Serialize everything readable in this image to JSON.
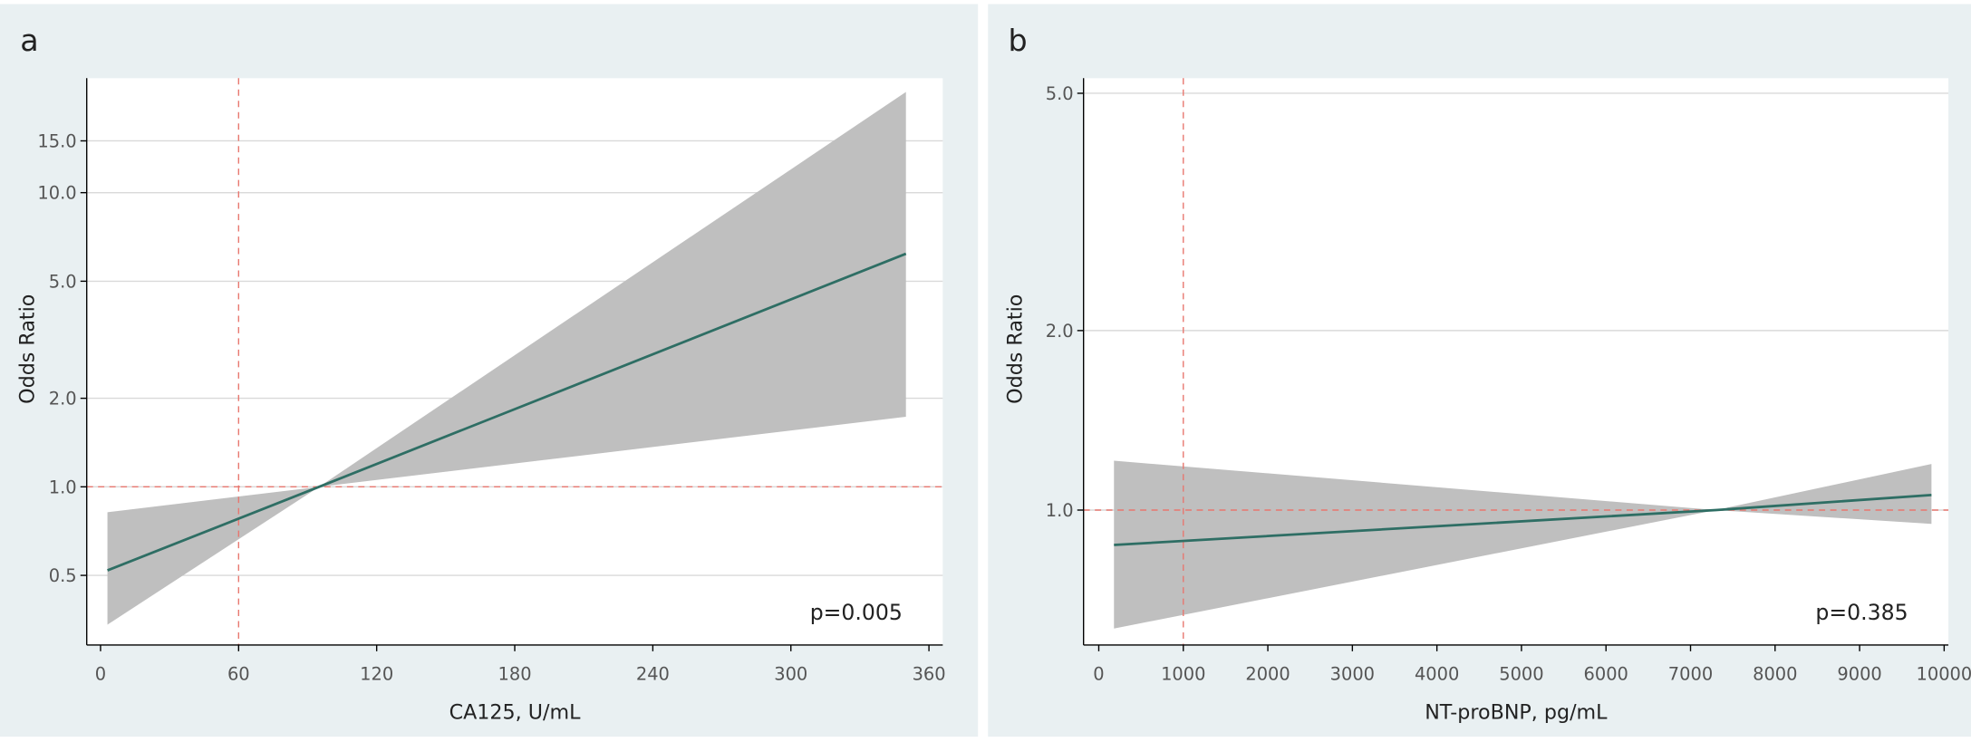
{
  "chart_data": [
    {
      "type": "line",
      "panel_label": "a",
      "x_label": "CA125, U/mL",
      "y_label": "Odds Ratio",
      "annotation": "p=0.005",
      "log_y": true,
      "grid": true,
      "xlim": [
        -6,
        366
      ],
      "xticks": [
        0,
        60,
        120,
        180,
        240,
        300,
        360
      ],
      "ylim": [
        0.29,
        24.5
      ],
      "yticks": [
        0.5,
        {
          "value": 1.0,
          "label": "1.0"
        },
        {
          "value": 2.0,
          "label": "2.0"
        },
        {
          "value": 5.0,
          "label": "5.0"
        },
        {
          "value": 10.0,
          "label": "10.0"
        },
        {
          "value": 15.0,
          "label": "15.0"
        }
      ],
      "x": [
        3,
        95,
        350
      ],
      "values": [
        0.52,
        1.0,
        6.2
      ],
      "lower": [
        0.34,
        1.0,
        1.73
      ],
      "upper": [
        0.82,
        1.0,
        22
      ],
      "color": "#2e6e64",
      "band_color": "#bfbfbf",
      "ref_color": "#e8776f",
      "ref_x": 60,
      "ref_y": 1.0
    },
    {
      "type": "line",
      "panel_label": "b",
      "x_label": "NT-proBNP, pg/mL",
      "y_label": "Odds Ratio",
      "annotation": "p=0.385",
      "log_y": true,
      "grid": true,
      "xlim": [
        -180,
        10050
      ],
      "xticks": [
        0,
        1000,
        2000,
        3000,
        4000,
        5000,
        6000,
        7000,
        8000,
        9000,
        10000
      ],
      "ylim": [
        0.594,
        5.3
      ],
      "yticks": [
        {
          "value": 1.0,
          "label": "1.0"
        },
        {
          "value": 2.0,
          "label": "2.0"
        },
        {
          "value": 5.0,
          "label": "5.0"
        }
      ],
      "x": [
        180,
        7300,
        9850
      ],
      "values": [
        0.874,
        1.0,
        1.06
      ],
      "lower": [
        0.633,
        1.0,
        0.948
      ],
      "upper": [
        1.21,
        1.0,
        1.195
      ],
      "color": "#2e6e64",
      "band_color": "#bfbfbf",
      "ref_color": "#e8776f",
      "ref_x": 1000,
      "ref_y": 1.0
    }
  ]
}
